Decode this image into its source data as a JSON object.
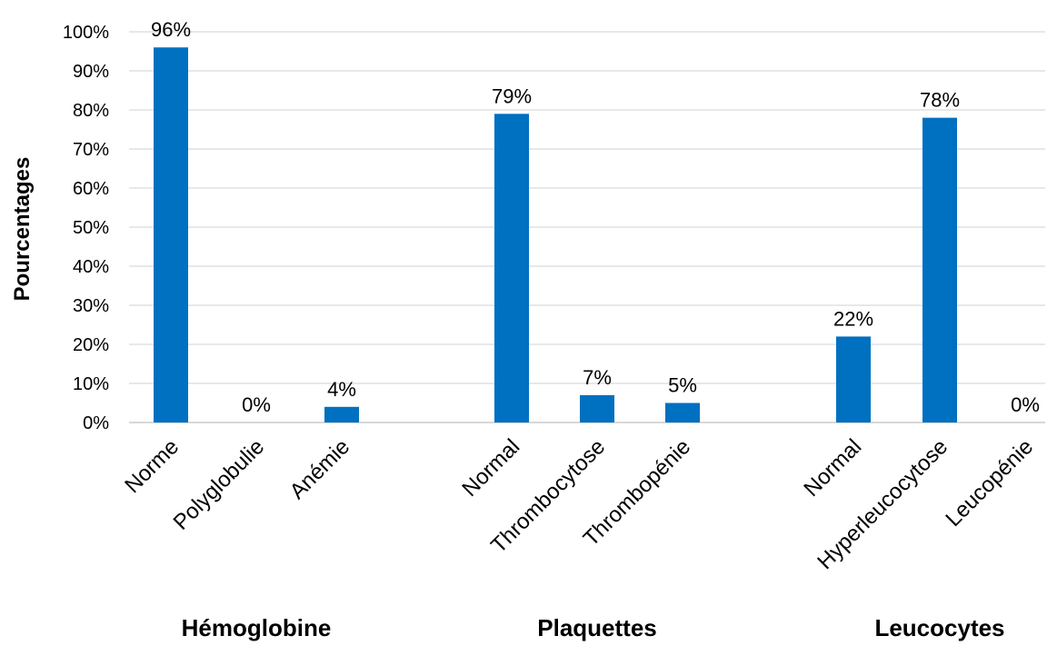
{
  "chart_data": {
    "type": "bar",
    "title": "",
    "ylabel": "Pourcentages",
    "xlabel": "",
    "ylim": [
      0,
      100
    ],
    "yticks": [
      "0%",
      "10%",
      "20%",
      "30%",
      "40%",
      "50%",
      "60%",
      "70%",
      "80%",
      "90%",
      "100%"
    ],
    "grid": true,
    "legend": "none",
    "bar_color": "#0070C0",
    "groups": [
      {
        "name": "Hémoglobine",
        "categories": [
          "Norme",
          "Polyglobulie",
          "Anémie"
        ],
        "values": [
          96,
          0,
          4
        ],
        "labels": [
          "96%",
          "0%",
          "4%"
        ]
      },
      {
        "name": "Plaquettes",
        "categories": [
          "Normal",
          "Thrombocytose",
          "Thrombopénie"
        ],
        "values": [
          79,
          7,
          5
        ],
        "labels": [
          "79%",
          "7%",
          "5%"
        ]
      },
      {
        "name": "Leucocytes",
        "categories": [
          "Normal",
          "Hyperleucocytose",
          "Leucopénie"
        ],
        "values": [
          22,
          78,
          0
        ],
        "labels": [
          "22%",
          "78%",
          "0%"
        ]
      }
    ]
  }
}
